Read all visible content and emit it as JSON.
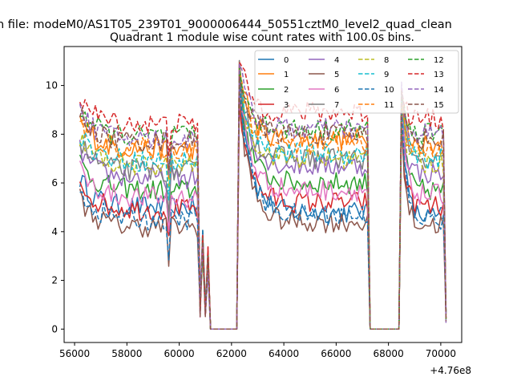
{
  "figure": {
    "suptitle": "n file: modeM0/AS1T05_239T01_9000006444_50551cztM0_level2_quad_clean",
    "title": "Quadrant 1 module wise count rates with 100.0s bins.",
    "x_offset_label": "+4.76e8"
  },
  "chart_data": {
    "type": "line",
    "title": "Quadrant 1 module wise count rates with 100.0s bins.",
    "xlabel": "",
    "ylabel": "",
    "x_offset": 476000000,
    "xlim": [
      55600,
      70800
    ],
    "ylim": [
      -0.55,
      11.6
    ],
    "xticks": [
      56000,
      58000,
      60000,
      62000,
      64000,
      66000,
      68000,
      70000
    ],
    "xtick_labels": [
      "56000",
      "58000",
      "60000",
      "62000",
      "64000",
      "66000",
      "68000",
      "70000"
    ],
    "yticks": [
      0,
      2,
      4,
      6,
      8,
      10
    ],
    "ytick_labels": [
      "0",
      "2",
      "4",
      "6",
      "8",
      "10"
    ],
    "legend_position": "top-right",
    "legend_columns": 4,
    "grid": false,
    "x_segments": [
      {
        "start": 56200,
        "end": 60700,
        "step": 100,
        "level": "high"
      },
      {
        "start": 60800,
        "end": 60800,
        "step": 100,
        "level": "drop1"
      },
      {
        "start": 60900,
        "end": 60900,
        "step": 100,
        "level": "spike"
      },
      {
        "start": 61000,
        "end": 61000,
        "step": 100,
        "level": "drop2"
      },
      {
        "start": 61100,
        "end": 61100,
        "step": 100,
        "level": "bump"
      },
      {
        "start": 61200,
        "end": 62200,
        "step": 100,
        "level": "zero"
      },
      {
        "start": 62300,
        "end": 67200,
        "step": 100,
        "level": "high"
      },
      {
        "start": 67300,
        "end": 68400,
        "step": 100,
        "level": "zero"
      },
      {
        "start": 68500,
        "end": 70100,
        "step": 100,
        "level": "high"
      },
      {
        "start": 70200,
        "end": 70200,
        "step": 100,
        "level": "end"
      }
    ],
    "series": [
      {
        "name": "0",
        "color": "#1f77b4",
        "dash": false,
        "base1": 5.0,
        "base2": 4.8,
        "base3": 4.6,
        "peak": 10.6
      },
      {
        "name": "1",
        "color": "#ff7f0e",
        "dash": false,
        "base1": 7.4,
        "base2": 7.8,
        "base3": 7.6,
        "peak": 10.8
      },
      {
        "name": "2",
        "color": "#2ca02c",
        "dash": false,
        "base1": 5.7,
        "base2": 6.0,
        "base3": 5.7,
        "peak": 10.2
      },
      {
        "name": "3",
        "color": "#d62728",
        "dash": false,
        "base1": 4.9,
        "base2": 5.2,
        "base3": 5.0,
        "peak": 9.4
      },
      {
        "name": "4",
        "color": "#9467bd",
        "dash": false,
        "base1": 6.2,
        "base2": 6.7,
        "base3": 6.4,
        "peak": 10.3
      },
      {
        "name": "5",
        "color": "#8c564b",
        "dash": false,
        "base1": 4.2,
        "base2": 4.4,
        "base3": 4.3,
        "peak": 9.5
      },
      {
        "name": "6",
        "color": "#e377c2",
        "dash": false,
        "base1": 5.4,
        "base2": 5.7,
        "base3": 5.5,
        "peak": 10.0
      },
      {
        "name": "7",
        "color": "#7f7f7f",
        "dash": false,
        "base1": 6.5,
        "base2": 7.0,
        "base3": 6.8,
        "peak": 10.6
      },
      {
        "name": "8",
        "color": "#bcbd22",
        "dash": true,
        "base1": 6.7,
        "base2": 7.0,
        "base3": 6.8,
        "peak": 10.3
      },
      {
        "name": "9",
        "color": "#17becf",
        "dash": true,
        "base1": 6.9,
        "base2": 7.2,
        "base3": 7.0,
        "peak": 10.4
      },
      {
        "name": "10",
        "color": "#1f77b4",
        "dash": true,
        "base1": 4.5,
        "base2": 4.7,
        "base3": 4.5,
        "peak": 10.2
      },
      {
        "name": "11",
        "color": "#ff7f0e",
        "dash": true,
        "base1": 7.4,
        "base2": 7.6,
        "base3": 7.3,
        "peak": 10.6
      },
      {
        "name": "12",
        "color": "#2ca02c",
        "dash": true,
        "base1": 7.9,
        "base2": 8.2,
        "base3": 8.0,
        "peak": 10.7
      },
      {
        "name": "13",
        "color": "#d62728",
        "dash": true,
        "base1": 8.4,
        "base2": 8.9,
        "base3": 8.6,
        "peak": 11.0
      },
      {
        "name": "14",
        "color": "#9467bd",
        "dash": true,
        "base1": 7.8,
        "base2": 8.2,
        "base3": 8.0,
        "peak": 10.8
      },
      {
        "name": "15",
        "color": "#8c564b",
        "dash": true,
        "base1": 7.7,
        "base2": 8.0,
        "base3": 7.8,
        "peak": 10.5
      }
    ]
  }
}
